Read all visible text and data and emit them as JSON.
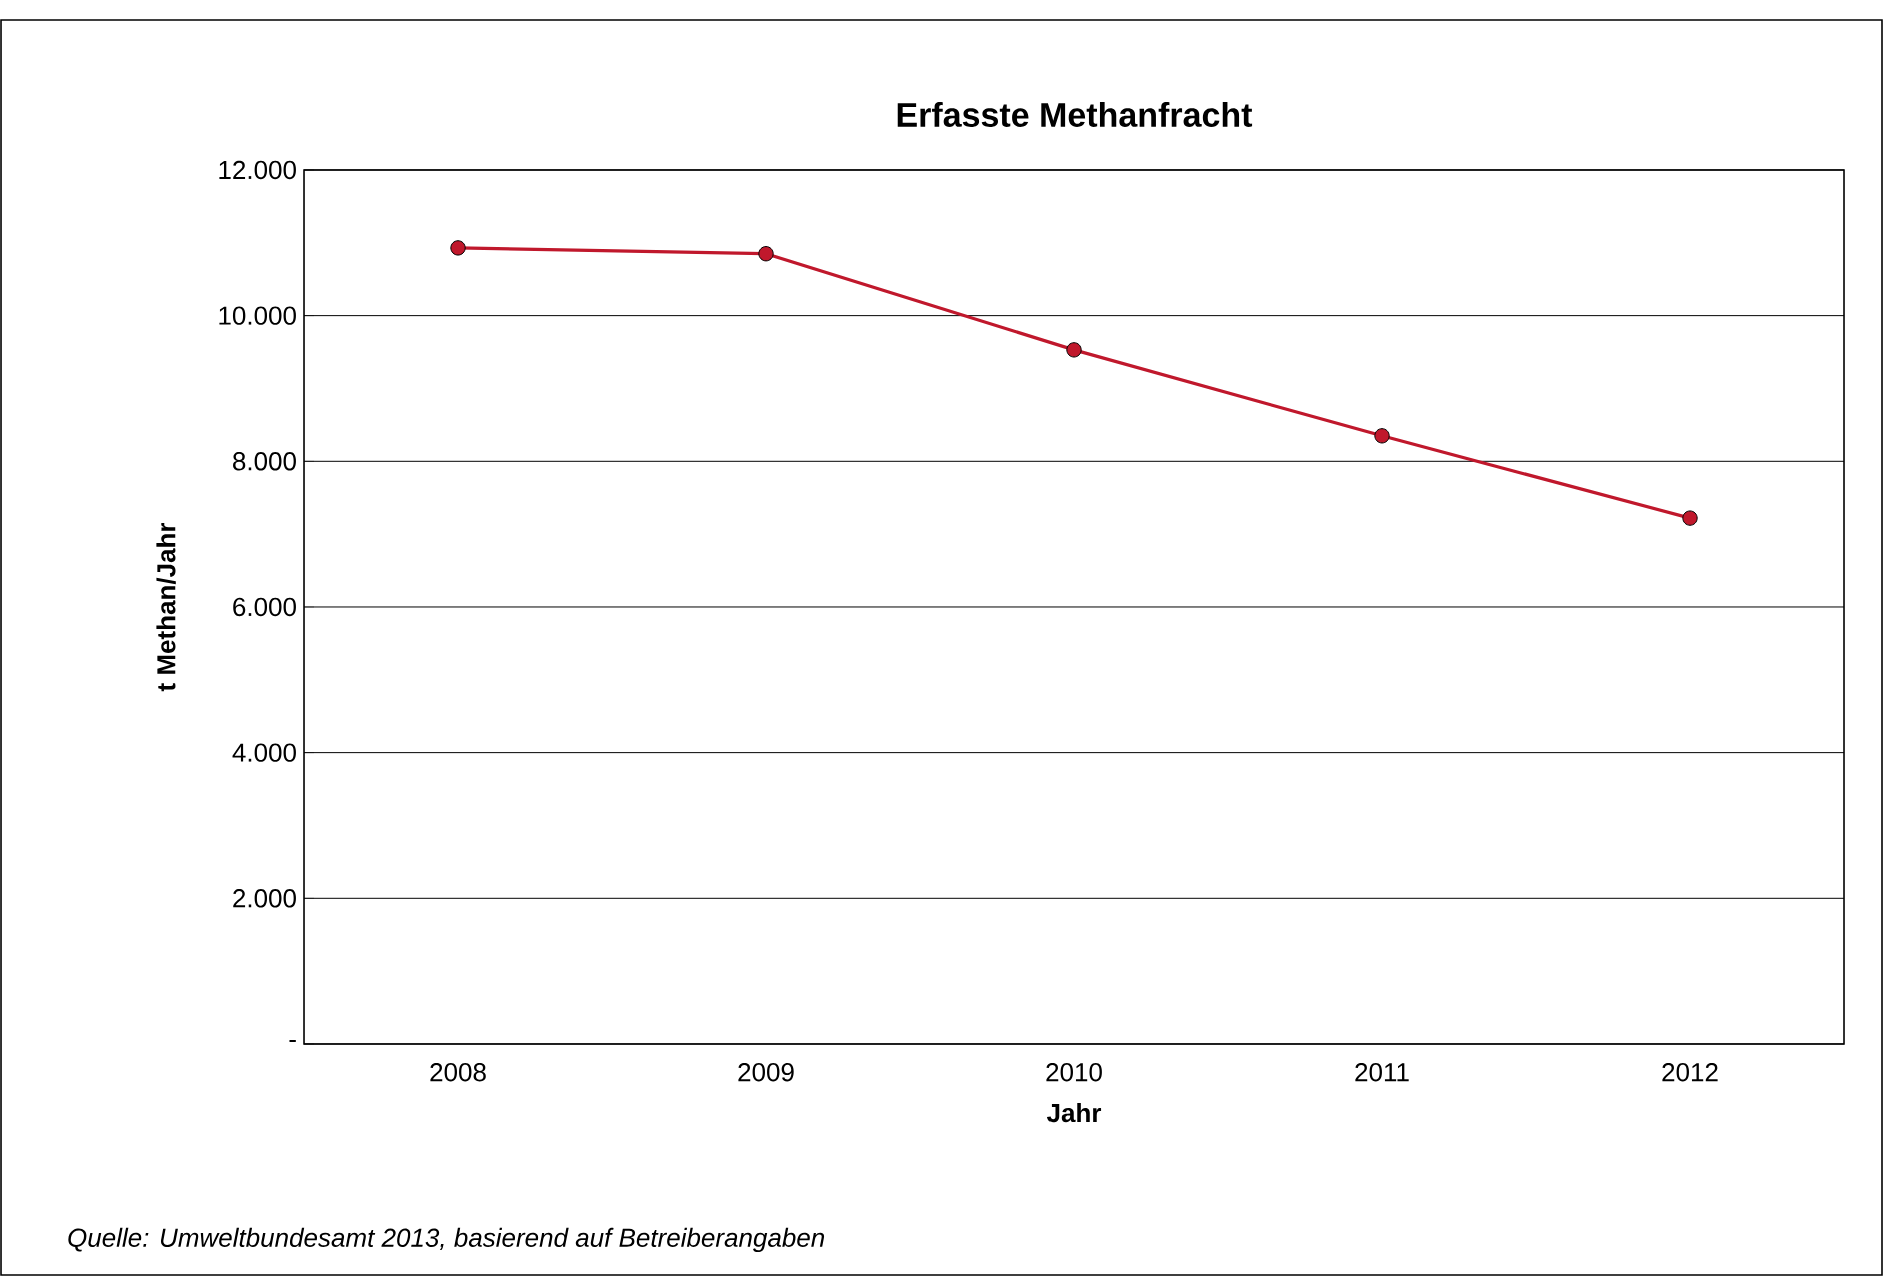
{
  "chart_data": {
    "type": "line",
    "title": "Erfasste Methanfracht",
    "xlabel": "Jahr",
    "ylabel": "t Methan/Jahr",
    "categories": [
      "2008",
      "2009",
      "2010",
      "2011",
      "2012"
    ],
    "series": [
      {
        "color": "#c0182c",
        "values": [
          10930,
          10850,
          9530,
          8350,
          7220
        ]
      }
    ],
    "ylim": [
      0,
      12000
    ],
    "yticks": [
      {
        "value": 0,
        "label": "-"
      },
      {
        "value": 2000,
        "label": "2.000"
      },
      {
        "value": 4000,
        "label": "4.000"
      },
      {
        "value": 6000,
        "label": "6.000"
      },
      {
        "value": 8000,
        "label": "8.000"
      },
      {
        "value": 10000,
        "label": "10.000"
      },
      {
        "value": 12000,
        "label": "12.000"
      }
    ],
    "grid": "y",
    "marker": "circle",
    "line_style": "solid",
    "annotations": [
      "Quelle: Umweltbundesamt 2013, basierend auf Betreiberangaben"
    ]
  }
}
